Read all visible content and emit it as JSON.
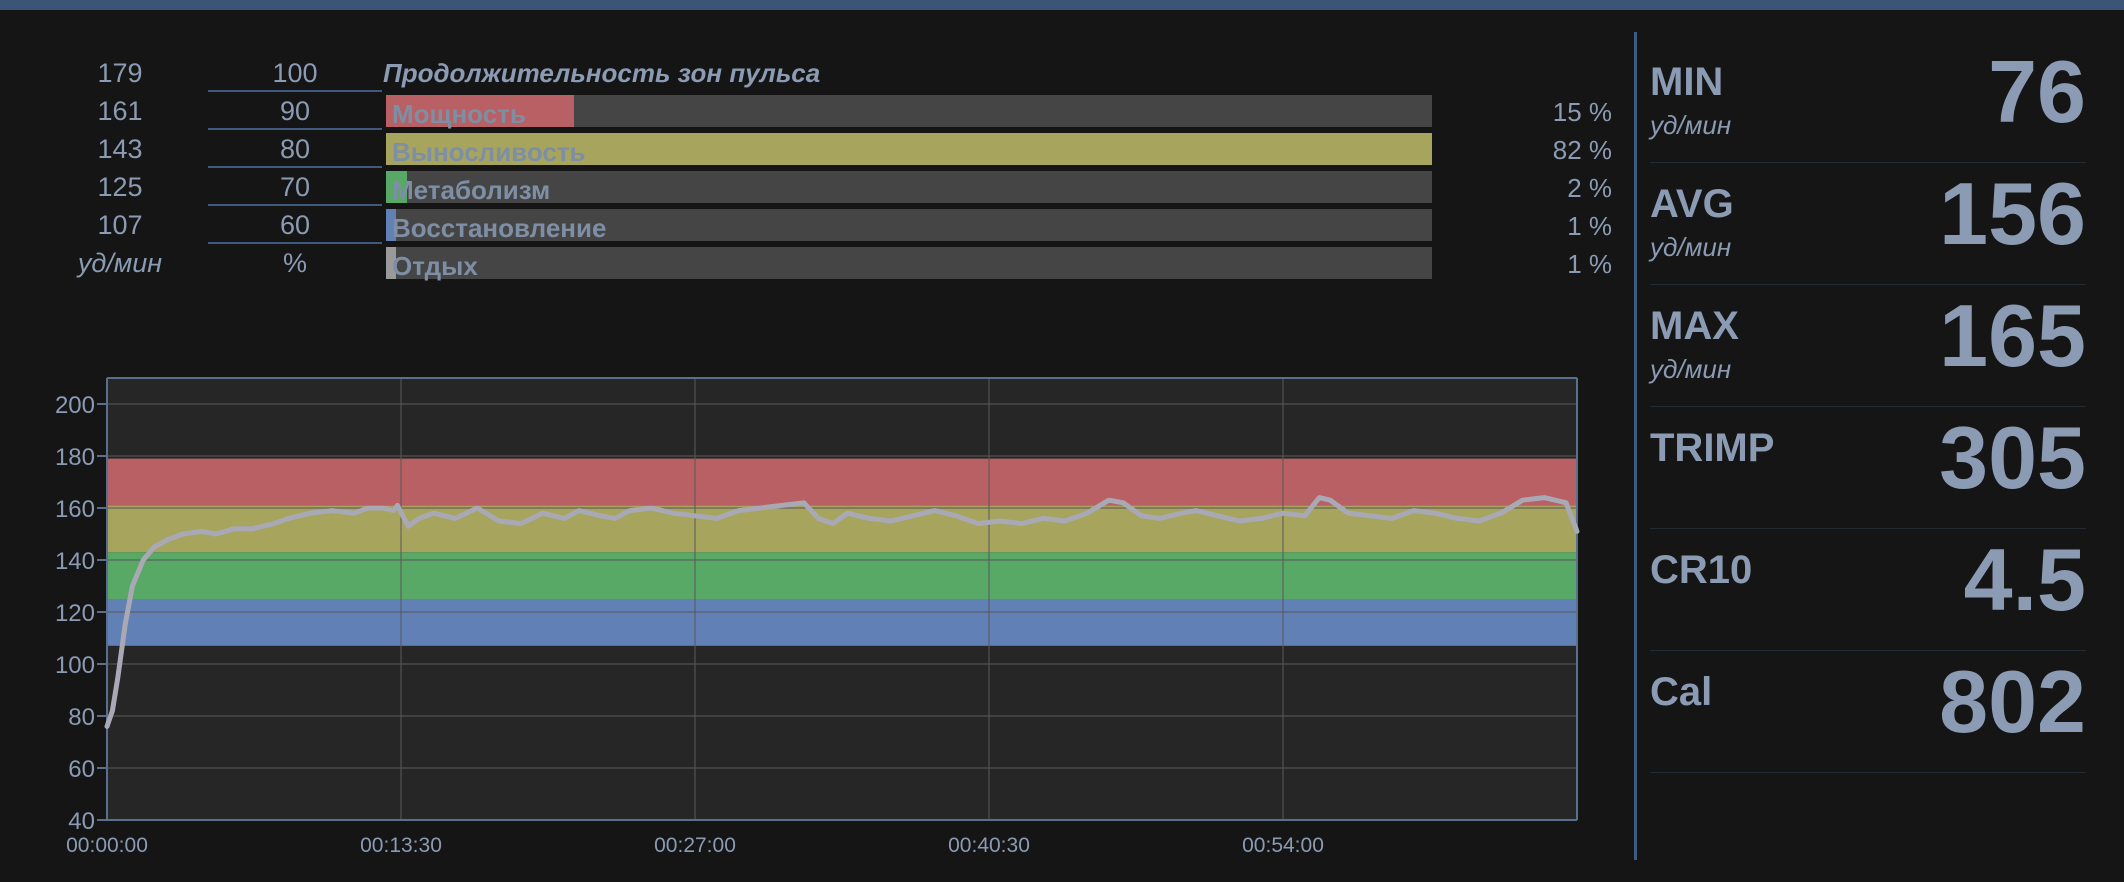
{
  "zones": {
    "title": "Продолжительность зон пульса",
    "bpm_unit": "уд/мин",
    "pct_unit": "%",
    "rows": [
      {
        "bpm": "179",
        "pct": "100"
      },
      {
        "bpm": "161",
        "pct": "90",
        "label": "Мощность",
        "fill": 0.18,
        "color": "#b86063",
        "value": "15 %"
      },
      {
        "bpm": "143",
        "pct": "80",
        "label": "Выносливость",
        "fill": 1.0,
        "color": "#a7a45e",
        "value": "82 %"
      },
      {
        "bpm": "125",
        "pct": "70",
        "label": "Метаболизм",
        "fill": 0.02,
        "color": "#58a866",
        "value": "2 %"
      },
      {
        "bpm": "107",
        "pct": "60",
        "label": "Восстановление",
        "fill": 0.01,
        "color": "#6180b6",
        "value": "1 %"
      },
      {
        "label": "Отдых",
        "fill": 0.01,
        "color": "#9a9a9a",
        "value": "1 %"
      }
    ]
  },
  "chart_data": {
    "type": "line",
    "ylim": [
      40,
      210
    ],
    "yticks": [
      40,
      60,
      80,
      100,
      120,
      140,
      160,
      180,
      200
    ],
    "xticks": [
      "00:00:00",
      "00:13:30",
      "00:27:00",
      "00:40:30",
      "00:54:00"
    ],
    "xlim_seconds": [
      0,
      4050
    ],
    "xtick_seconds": [
      0,
      810,
      1620,
      2430,
      3240
    ],
    "zone_bands": [
      {
        "from": 107,
        "to": 125,
        "color": "#6180b6"
      },
      {
        "from": 125,
        "to": 143,
        "color": "#58a866"
      },
      {
        "from": 143,
        "to": 161,
        "color": "#a7a45e"
      },
      {
        "from": 161,
        "to": 179,
        "color": "#b86063"
      }
    ],
    "series": [
      {
        "color": "#a9a9b5",
        "x_seconds": [
          0,
          15,
          30,
          50,
          70,
          100,
          130,
          170,
          210,
          260,
          300,
          350,
          400,
          460,
          500,
          560,
          620,
          680,
          720,
          760,
          790,
          800,
          830,
          860,
          900,
          960,
          1020,
          1080,
          1140,
          1200,
          1260,
          1300,
          1360,
          1400,
          1440,
          1500,
          1560,
          1620,
          1680,
          1740,
          1800,
          1860,
          1920,
          1960,
          2000,
          2040,
          2100,
          2160,
          2220,
          2280,
          2340,
          2400,
          2460,
          2520,
          2580,
          2640,
          2700,
          2760,
          2800,
          2850,
          2900,
          2960,
          3000,
          3060,
          3120,
          3180,
          3240,
          3300,
          3340,
          3370,
          3420,
          3480,
          3540,
          3600,
          3660,
          3720,
          3780,
          3840,
          3900,
          3960,
          4020,
          4050
        ],
        "y": [
          76,
          82,
          95,
          115,
          130,
          140,
          145,
          148,
          150,
          151,
          150,
          152,
          152,
          154,
          156,
          158,
          159,
          158,
          160,
          160,
          159,
          161,
          153,
          156,
          158,
          156,
          160,
          155,
          154,
          158,
          156,
          159,
          157,
          156,
          159,
          160,
          158,
          157,
          156,
          159,
          160,
          161,
          162,
          156,
          154,
          158,
          156,
          155,
          157,
          159,
          157,
          154,
          155,
          154,
          156,
          155,
          158,
          163,
          162,
          157,
          156,
          158,
          159,
          157,
          155,
          156,
          158,
          157,
          164,
          163,
          158,
          157,
          156,
          159,
          158,
          156,
          155,
          158,
          163,
          164,
          162,
          151
        ]
      }
    ]
  },
  "stats": [
    {
      "label": "MIN",
      "unit": "уд/мин",
      "value": "76"
    },
    {
      "label": "AVG",
      "unit": "уд/мин",
      "value": "156"
    },
    {
      "label": "MAX",
      "unit": "уд/мин",
      "value": "165"
    },
    {
      "label": "TRIMP",
      "unit": "",
      "value": "305"
    },
    {
      "label": "CR10",
      "unit": "",
      "value": "4.5"
    },
    {
      "label": "Cal",
      "unit": "",
      "value": "802"
    }
  ]
}
